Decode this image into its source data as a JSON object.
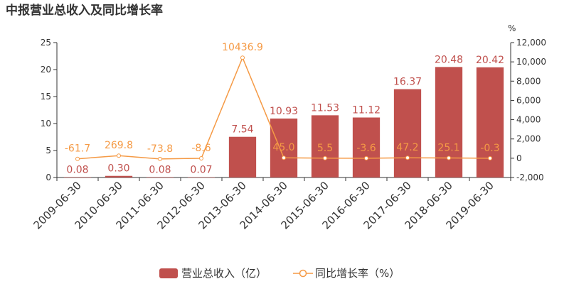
{
  "chart_data": {
    "type": "bar",
    "title": "中报营业总收入及同比增长率",
    "categories": [
      "2009-06-30",
      "2010-06-30",
      "2011-06-30",
      "2012-06-30",
      "2013-06-30",
      "2014-06-30",
      "2015-06-30",
      "2016-06-30",
      "2017-06-30",
      "2018-06-30",
      "2019-06-30"
    ],
    "series": [
      {
        "name": "营业总收入（亿）",
        "type": "bar",
        "axis": "left",
        "values": [
          0.08,
          0.3,
          0.08,
          0.07,
          7.54,
          10.93,
          11.53,
          11.12,
          16.37,
          20.48,
          20.42
        ],
        "labels": [
          "0.08",
          "0.30",
          "0.08",
          "0.07",
          "7.54",
          "10.93",
          "11.53",
          "11.12",
          "16.37",
          "20.48",
          "20.42"
        ],
        "color": "#c0504d"
      },
      {
        "name": "同比增长率（%）",
        "type": "line",
        "axis": "right",
        "values": [
          -61.7,
          269.8,
          -73.8,
          -8.6,
          10436.9,
          45.0,
          5.5,
          -3.6,
          47.2,
          25.1,
          -0.3
        ],
        "labels": [
          "-61.7",
          "269.8",
          "-73.8",
          "-8.6",
          "10436.9",
          "45.0",
          "5.5",
          "-3.6",
          "47.2",
          "25.1",
          "-0.3"
        ],
        "color": "#f59a45"
      }
    ],
    "left_axis": {
      "min": 0,
      "max": 25,
      "ticks": [
        0,
        5,
        10,
        15,
        20,
        25
      ]
    },
    "right_axis": {
      "unit": "%",
      "min": -2000,
      "max": 12000,
      "ticks": [
        -2000,
        0,
        2000,
        4000,
        6000,
        8000,
        10000,
        12000
      ],
      "tick_labels": [
        "-2,000",
        "0",
        "2,000",
        "4,000",
        "6,000",
        "8,000",
        "10,000",
        "12,000"
      ]
    },
    "grid": false,
    "legend_position": "bottom"
  }
}
